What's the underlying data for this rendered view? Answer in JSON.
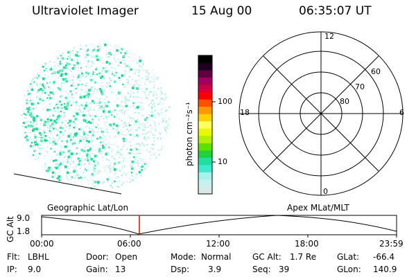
{
  "header": {
    "instrument": "Ultraviolet Imager",
    "date": "15 Aug 00",
    "time": "06:35:07 UT"
  },
  "colorbar": {
    "unit_label": "photon cm⁻²s⁻¹",
    "ticks": [
      "100",
      "10"
    ],
    "colors": [
      "#d8e8e8",
      "#c8f0f0",
      "#a8f0e8",
      "#40e8d0",
      "#20e0a0",
      "#20d040",
      "#60e000",
      "#b0f000",
      "#e8f800",
      "#ffff60",
      "#ffd000",
      "#ff9800",
      "#ff5000",
      "#ff0000",
      "#d00040",
      "#a00060",
      "#600040",
      "#200020",
      "#000000"
    ]
  },
  "polar_plot": {
    "mlt_labels": {
      "top": "12",
      "bottom": "0",
      "left": "18",
      "right": "6"
    },
    "lat_labels": [
      "60",
      "70",
      "80"
    ]
  },
  "altitude_plot": {
    "left_label": "Geographic Lat/Lon",
    "right_label": "Apex MLat/MLT",
    "axis_label": "GC Alt",
    "y_ticks": [
      "9.0",
      "1.8"
    ],
    "x_ticks": [
      "00:00",
      "06:00",
      "12:00",
      "18:00",
      "23:59"
    ],
    "marker_color": "#ff0000"
  },
  "info": {
    "flt_label": "Flt:",
    "flt_value": "LBHL",
    "door_label": "Door:",
    "door_value": "Open",
    "mode_label": "Mode:",
    "mode_value": "Normal",
    "gcalt_label": "GC Alt:",
    "gcalt_value": "1.7 Re",
    "glat_label": "GLat:",
    "glat_value": "-66.4",
    "ip_label": "IP:",
    "ip_value": "9.0",
    "gain_label": "Gain:",
    "gain_value": "13",
    "dsp_label": "Dsp:",
    "dsp_value": "3.9",
    "seq_label": "Seq:",
    "seq_value": "39",
    "glon_label": "GLon:",
    "glon_value": "140.9"
  }
}
